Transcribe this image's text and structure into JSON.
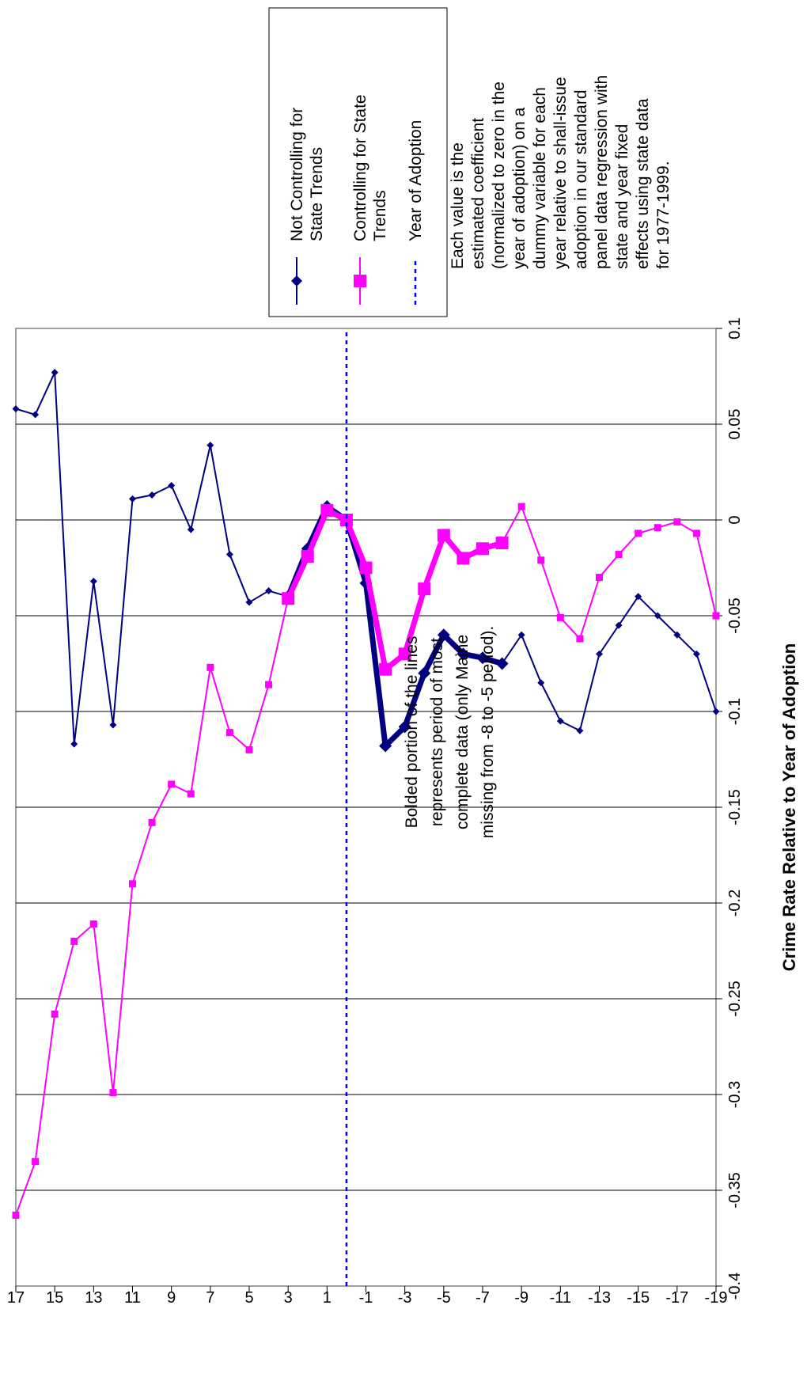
{
  "chart_data": {
    "type": "line",
    "ylabel": "Crime Rate Relative to Year of Adoption",
    "xlabel": "",
    "x_ticks": [
      "-19",
      "-17",
      "-15",
      "-13",
      "-11",
      "-9",
      "-7",
      "-5",
      "-3",
      "-1",
      "1",
      "3",
      "5",
      "7",
      "9",
      "11",
      "13",
      "15",
      "17"
    ],
    "y_ticks": [
      "0.1",
      "0.05",
      "0",
      "-0.05",
      "-0.1",
      "-0.15",
      "-0.2",
      "-0.25",
      "-0.3",
      "-0.35",
      "-0.4"
    ],
    "xlim": [
      -19,
      17
    ],
    "ylim": [
      -0.4,
      0.1
    ],
    "grid": "horizontal",
    "legend_position": "right",
    "series": [
      {
        "name": "Not Controlling for State Trends",
        "color": "#000080",
        "marker": "diamond",
        "x": [
          -19,
          -18,
          -17,
          -16,
          -15,
          -14,
          -13,
          -12,
          -11,
          -10,
          -9,
          -8,
          -7,
          -6,
          -5,
          -4,
          -3,
          -2,
          -1,
          0,
          1,
          2,
          3,
          4,
          5,
          6,
          7,
          8,
          9,
          10,
          11,
          12,
          13,
          14,
          15,
          16,
          17
        ],
        "y": [
          -0.1,
          -0.07,
          -0.06,
          -0.05,
          -0.04,
          -0.055,
          -0.07,
          -0.11,
          -0.105,
          -0.085,
          -0.06,
          -0.075,
          -0.072,
          -0.07,
          -0.06,
          -0.08,
          -0.108,
          -0.118,
          -0.033,
          0,
          0.007,
          -0.015,
          -0.04,
          -0.037,
          -0.043,
          -0.018,
          0.039,
          -0.005,
          0.018,
          0.013,
          0.011,
          -0.107,
          -0.032,
          -0.117,
          0.077,
          0.055,
          0.058
        ]
      },
      {
        "name": "Controlling for State Trends",
        "color": "#ff00ff",
        "marker": "square",
        "x": [
          -19,
          -18,
          -17,
          -16,
          -15,
          -14,
          -13,
          -12,
          -11,
          -10,
          -9,
          -8,
          -7,
          -6,
          -5,
          -4,
          -3,
          -2,
          -1,
          0,
          1,
          2,
          3,
          4,
          5,
          6,
          7,
          8,
          9,
          10,
          11,
          12,
          13,
          14,
          15,
          16,
          17
        ],
        "y": [
          -0.05,
          -0.007,
          -0.001,
          -0.004,
          -0.007,
          -0.018,
          -0.03,
          -0.062,
          -0.051,
          -0.021,
          0.007,
          -0.012,
          -0.015,
          -0.02,
          -0.008,
          -0.036,
          -0.07,
          -0.078,
          -0.025,
          0,
          0.005,
          -0.019,
          -0.041,
          -0.086,
          -0.12,
          -0.111,
          -0.077,
          -0.143,
          -0.138,
          -0.158,
          -0.19,
          -0.299,
          -0.211,
          -0.22,
          -0.258,
          -0.335,
          -0.363
        ]
      },
      {
        "name": "Year of Adoption",
        "color": "#0000ff",
        "style": "dotted",
        "x_value": 0
      }
    ],
    "bold_range": [
      -8,
      3
    ]
  },
  "note": "Each value is the estimated coefficient (normalized to zero in the year of adoption) on a dummy variable for each year relative to shall-issue adoption in our standard panel data regression with state and year fixed effects using state data for 1977-1999.",
  "annotation": "Bolded portion of the lines represents period of most complete data (only Maine missing from -8 to -5 period)."
}
